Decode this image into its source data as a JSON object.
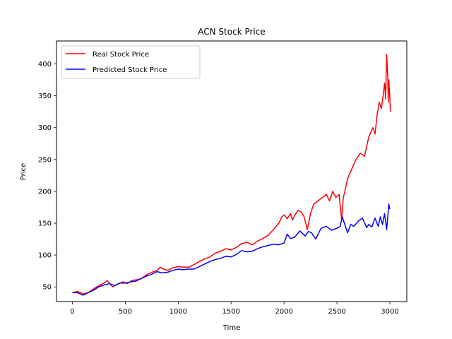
{
  "chart_data": {
    "type": "line",
    "title": "ACN Stock Price",
    "xlabel": "Time",
    "ylabel": "Price",
    "xlim": [
      -150,
      3160
    ],
    "ylim": [
      27,
      436
    ],
    "xticks": [
      0,
      500,
      1000,
      1500,
      2000,
      2500,
      3000
    ],
    "yticks": [
      50,
      100,
      150,
      200,
      250,
      300,
      350,
      400
    ],
    "legend_position": "upper-left",
    "series": [
      {
        "name": "Real Stock Price",
        "color": "#ff0000",
        "x": [
          0,
          50,
          100,
          150,
          200,
          250,
          300,
          330,
          360,
          380,
          420,
          480,
          520,
          560,
          600,
          650,
          700,
          750,
          800,
          830,
          860,
          900,
          950,
          1000,
          1050,
          1100,
          1150,
          1200,
          1250,
          1300,
          1350,
          1400,
          1450,
          1500,
          1550,
          1600,
          1650,
          1700,
          1750,
          1800,
          1850,
          1900,
          1950,
          1980,
          2000,
          2030,
          2060,
          2080,
          2100,
          2130,
          2160,
          2190,
          2220,
          2250,
          2280,
          2320,
          2360,
          2400,
          2430,
          2460,
          2490,
          2520,
          2545,
          2560,
          2575,
          2600,
          2640,
          2680,
          2720,
          2760,
          2800,
          2840,
          2860,
          2880,
          2900,
          2920,
          2940,
          2950,
          2960,
          2970,
          2980,
          2985,
          2990,
          3000,
          3005
        ],
        "values": [
          41,
          43,
          39,
          41,
          47,
          52,
          56,
          60,
          54,
          50,
          54,
          58,
          55,
          60,
          61,
          63,
          69,
          73,
          76,
          81,
          78,
          76,
          80,
          82,
          81,
          81,
          85,
          90,
          94,
          97,
          103,
          106,
          110,
          108,
          112,
          118,
          120,
          116,
          122,
          126,
          131,
          140,
          150,
          160,
          163,
          157,
          165,
          155,
          162,
          170,
          168,
          160,
          140,
          165,
          180,
          185,
          190,
          195,
          185,
          200,
          190,
          195,
          155,
          190,
          200,
          220,
          235,
          250,
          260,
          255,
          285,
          300,
          290,
          320,
          340,
          330,
          355,
          370,
          345,
          415,
          380,
          340,
          375,
          345,
          325
        ]
      },
      {
        "name": "Predicted Stock Price",
        "color": "#0000ff",
        "x": [
          0,
          50,
          100,
          150,
          200,
          250,
          300,
          350,
          400,
          450,
          500,
          550,
          600,
          650,
          700,
          750,
          800,
          850,
          900,
          950,
          1000,
          1050,
          1100,
          1150,
          1200,
          1250,
          1300,
          1350,
          1400,
          1450,
          1500,
          1550,
          1600,
          1650,
          1700,
          1750,
          1800,
          1850,
          1900,
          1950,
          2000,
          2030,
          2060,
          2100,
          2150,
          2200,
          2230,
          2260,
          2300,
          2350,
          2400,
          2450,
          2500,
          2530,
          2550,
          2580,
          2600,
          2630,
          2660,
          2700,
          2740,
          2780,
          2800,
          2830,
          2860,
          2890,
          2910,
          2930,
          2950,
          2970,
          2980,
          2990,
          3000
        ],
        "values": [
          41,
          41,
          37,
          41,
          45,
          50,
          53,
          55,
          52,
          56,
          56,
          58,
          59,
          63,
          67,
          70,
          74,
          72,
          73,
          76,
          78,
          77,
          78,
          78,
          82,
          86,
          90,
          93,
          95,
          98,
          97,
          101,
          107,
          105,
          106,
          110,
          113,
          115,
          117,
          116,
          119,
          133,
          126,
          128,
          138,
          130,
          137,
          135,
          125,
          142,
          145,
          139,
          142,
          145,
          160,
          145,
          135,
          148,
          145,
          153,
          158,
          143,
          148,
          144,
          158,
          145,
          160,
          148,
          165,
          140,
          160,
          180,
          172
        ]
      }
    ]
  }
}
